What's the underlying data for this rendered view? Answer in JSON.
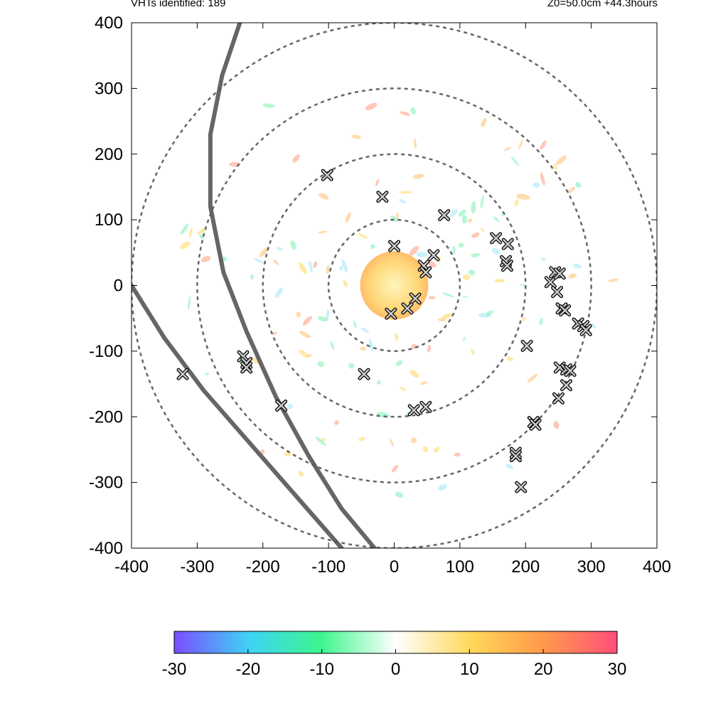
{
  "header": {
    "left": "VHTs identified: 189",
    "right": "Z0=50.0cm  +44.3hours"
  },
  "chart_data": {
    "type": "scatter",
    "xlim": [
      -400,
      400
    ],
    "ylim": [
      -400,
      400
    ],
    "x_ticks": [
      "-400",
      "-300",
      "-200",
      "-100",
      "0",
      "100",
      "200",
      "300",
      "400"
    ],
    "y_ticks": [
      "400",
      "300",
      "200",
      "100",
      "0",
      "-100",
      "-200",
      "-300",
      "-400"
    ],
    "x_tick_values": [
      -400,
      -300,
      -200,
      -100,
      0,
      100,
      200,
      300,
      400
    ],
    "y_tick_values": [
      400,
      300,
      200,
      100,
      0,
      -100,
      -200,
      -300,
      -400
    ],
    "range_rings_radius": [
      100,
      200,
      300,
      400
    ],
    "vht_count": 189,
    "vht_markers": [
      {
        "x": -102,
        "y": 168
      },
      {
        "x": -18,
        "y": 135
      },
      {
        "x": 76,
        "y": 107
      },
      {
        "x": 155,
        "y": 72
      },
      {
        "x": 173,
        "y": 63
      },
      {
        "x": 170,
        "y": 37
      },
      {
        "x": 172,
        "y": 30
      },
      {
        "x": 0,
        "y": 60
      },
      {
        "x": 60,
        "y": 46
      },
      {
        "x": 45,
        "y": 30
      },
      {
        "x": 48,
        "y": 20
      },
      {
        "x": 32,
        "y": -20
      },
      {
        "x": 20,
        "y": -35
      },
      {
        "x": -5,
        "y": -43
      },
      {
        "x": 238,
        "y": 5
      },
      {
        "x": 245,
        "y": 20
      },
      {
        "x": 252,
        "y": 18
      },
      {
        "x": 248,
        "y": -10
      },
      {
        "x": 255,
        "y": -35
      },
      {
        "x": 260,
        "y": -38
      },
      {
        "x": 280,
        "y": -58
      },
      {
        "x": 288,
        "y": -62
      },
      {
        "x": 292,
        "y": -68
      },
      {
        "x": 202,
        "y": -92
      },
      {
        "x": 252,
        "y": -125
      },
      {
        "x": 262,
        "y": -128
      },
      {
        "x": 268,
        "y": -130
      },
      {
        "x": 262,
        "y": -152
      },
      {
        "x": 250,
        "y": -172
      },
      {
        "x": 212,
        "y": -208
      },
      {
        "x": 215,
        "y": -212
      },
      {
        "x": 185,
        "y": -255
      },
      {
        "x": 185,
        "y": -260
      },
      {
        "x": 193,
        "y": -307
      },
      {
        "x": -230,
        "y": -108
      },
      {
        "x": -225,
        "y": -118
      },
      {
        "x": -225,
        "y": -125
      },
      {
        "x": -322,
        "y": -135
      },
      {
        "x": -46,
        "y": -135
      },
      {
        "x": -172,
        "y": -183
      },
      {
        "x": 30,
        "y": -190
      },
      {
        "x": 48,
        "y": -185
      }
    ],
    "track_lines": [
      {
        "points": [
          [
            -235,
            400
          ],
          [
            -262,
            320
          ],
          [
            -280,
            230
          ],
          [
            -280,
            120
          ],
          [
            -260,
            20
          ],
          [
            -225,
            -70
          ],
          [
            -180,
            -170
          ],
          [
            -130,
            -260
          ],
          [
            -80,
            -340
          ],
          [
            -30,
            -400
          ]
        ]
      },
      {
        "points": [
          [
            -400,
            0
          ],
          [
            -350,
            -80
          ],
          [
            -290,
            -160
          ],
          [
            -220,
            -240
          ],
          [
            -150,
            -320
          ],
          [
            -80,
            -400
          ]
        ]
      }
    ],
    "colorbar": {
      "min": -30,
      "max": 30,
      "tick_labels": [
        "-30",
        "-20",
        "-10",
        "0",
        "10",
        "20",
        "30"
      ],
      "tick_values": [
        -30,
        -20,
        -10,
        0,
        10,
        20,
        30
      ],
      "colors": [
        "#7a4dff",
        "#3fd3f5",
        "#3cf58e",
        "#ffffff",
        "#ffd85a",
        "#ff9a4a",
        "#ff4f7a"
      ]
    }
  }
}
